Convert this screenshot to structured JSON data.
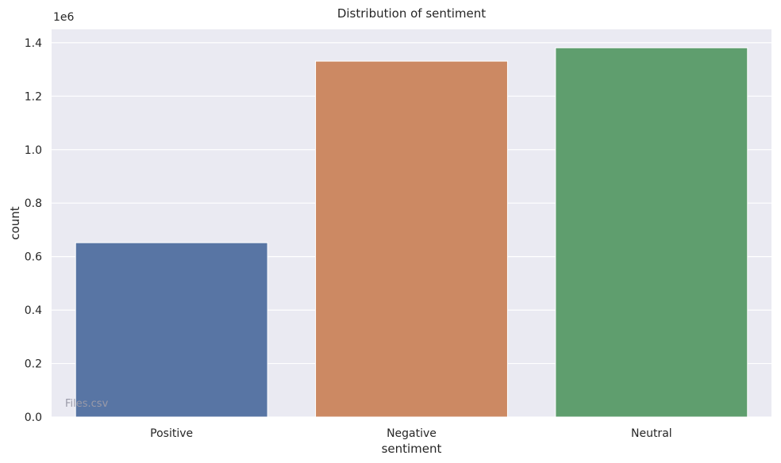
{
  "chart_data": {
    "type": "bar",
    "title": "Distribution of sentiment",
    "xlabel": "sentiment",
    "ylabel": "count",
    "y_offset_label": "1e6",
    "categories": [
      "Positive",
      "Negative",
      "Neutral"
    ],
    "values": [
      652000,
      1331000,
      1381000
    ],
    "colors": [
      "#5875a4",
      "#cc8963",
      "#5f9e6e"
    ],
    "ylim": [
      0,
      1450000
    ],
    "yticks": [
      0,
      200000,
      400000,
      600000,
      800000,
      1000000,
      1200000,
      1400000
    ],
    "ytick_labels": [
      "0.0",
      "0.2",
      "0.4",
      "0.6",
      "0.8",
      "1.0",
      "1.2",
      "1.4"
    ],
    "grid": true,
    "plot_background": "#eaeaf2",
    "grid_color": "#ffffff"
  },
  "watermark": "Files.csv"
}
